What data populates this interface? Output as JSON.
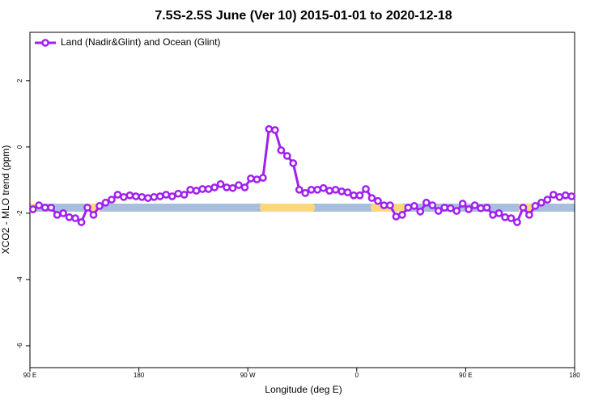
{
  "chart_data": {
    "type": "line",
    "title": "7.5S-2.5S June (Ver 10)   2015-01-01 to 2020-12-18",
    "x_label": "Longitude (deg E)",
    "y_label": "XCO2 - MLO trend (ppm)",
    "xlim": [
      90,
      540
    ],
    "ylim": [
      -6.66,
      3.46
    ],
    "xticks": [
      {
        "value": 90,
        "label": "90 E"
      },
      180,
      {
        "value": 270,
        "label": "90 W"
      },
      {
        "value": 360,
        "label": "0"
      },
      {
        "value": 450,
        "label": "90 E"
      },
      {
        "value": 540,
        "label": "180"
      }
    ],
    "yticks": [
      2,
      0,
      -2,
      -4,
      -6
    ],
    "legend": "top-left",
    "x": [
      92.5,
      97.5,
      102.5,
      107.5,
      112.5,
      117.5,
      122.5,
      127.5,
      132.5,
      137.5,
      142.5,
      147.5,
      152.5,
      157.5,
      162.5,
      167.5,
      172.5,
      177.5,
      182.5,
      187.5,
      192.5,
      197.5,
      202.5,
      207.5,
      212.5,
      217.5,
      222.5,
      227.5,
      232.5,
      237.5,
      242.5,
      247.5,
      252.5,
      257.5,
      262.5,
      267.5,
      272.5,
      277.5,
      282.5,
      287.5,
      292.5,
      297.5,
      302.5,
      307.5,
      312.5,
      317.5,
      322.5,
      327.5,
      332.5,
      337.5,
      342.5,
      347.5,
      352.5,
      357.5,
      362.5,
      367.5,
      372.5,
      377.5,
      382.5,
      387.5,
      392.5,
      397.5,
      402.5,
      407.5,
      412.5,
      417.5,
      422.5,
      427.5,
      432.5,
      437.5,
      442.5,
      447.5,
      452.5,
      457.5,
      462.5,
      467.5,
      472.5,
      477.5,
      482.5,
      487.5,
      492.5,
      497.5,
      502.5,
      507.5,
      512.5,
      517.5,
      522.5,
      527.5,
      532.5,
      537.5
    ],
    "series": [
      {
        "name": "Land (Nadir&Glint) and Ocean (Glint)",
        "color": "#a020f0",
        "values": [
          -1.88,
          -1.76,
          -1.83,
          -1.83,
          -2.05,
          -2.0,
          -2.12,
          -2.15,
          -2.27,
          -1.83,
          -2.05,
          -1.78,
          -1.68,
          -1.59,
          -1.44,
          -1.51,
          -1.46,
          -1.49,
          -1.51,
          -1.54,
          -1.51,
          -1.49,
          -1.44,
          -1.49,
          -1.41,
          -1.44,
          -1.29,
          -1.32,
          -1.27,
          -1.27,
          -1.22,
          -1.12,
          -1.22,
          -1.24,
          -1.15,
          -1.22,
          -0.95,
          -0.98,
          -0.93,
          0.54,
          0.51,
          -0.1,
          -0.27,
          -0.49,
          -1.29,
          -1.39,
          -1.29,
          -1.29,
          -1.24,
          -1.32,
          -1.29,
          -1.34,
          -1.37,
          -1.46,
          -1.46,
          -1.27,
          -1.54,
          -1.63,
          -1.76,
          -1.76,
          -2.1,
          -2.05,
          -1.83,
          -1.78,
          -1.95,
          -1.68,
          -1.76,
          -1.93,
          -1.83,
          -1.85,
          -1.93,
          -1.71,
          -1.88,
          -1.76,
          -1.85,
          -1.83,
          -2.05,
          -2.0,
          -2.12,
          -2.15,
          -2.27,
          -1.83,
          -2.05,
          -1.78,
          -1.68,
          -1.59,
          -1.44,
          -1.51,
          -1.46,
          -1.49
        ]
      }
    ]
  }
}
